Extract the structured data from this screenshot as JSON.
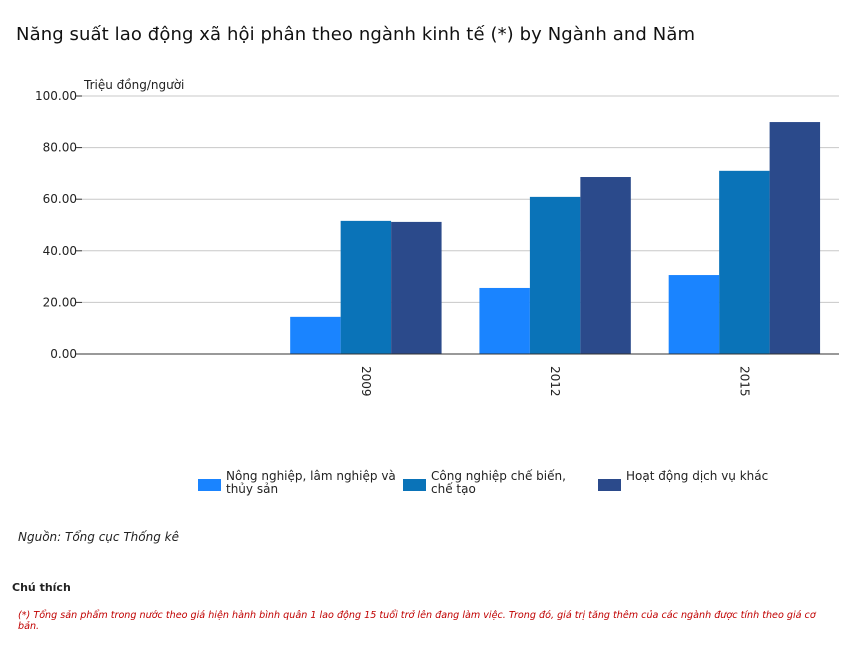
{
  "title": "Năng suất lao động xã hội phân theo ngành kinh tế (*) by Ngành and Năm",
  "chart_data": {
    "type": "bar",
    "title": "Năng suất lao động xã hội phân theo ngành kinh tế (*) by Ngành and Năm",
    "ylabel": "Triệu đồng/người",
    "xlabel": "",
    "ylim": [
      0,
      100
    ],
    "yticks": [
      "0.00",
      "20.00",
      "40.00",
      "60.00",
      "80.00",
      "100.00"
    ],
    "categories": [
      "",
      "2009",
      "2012",
      "2015"
    ],
    "series": [
      {
        "name": "Nông nghiệp, lâm nghiệp và thủy sản",
        "color": "#1a84ff",
        "values": [
          null,
          14.4,
          25.6,
          30.6
        ]
      },
      {
        "name": "Công nghiệp chế biến, chế tạo",
        "color": "#0a73b8",
        "values": [
          null,
          51.6,
          60.9,
          71.0
        ]
      },
      {
        "name": "Hoạt động dịch vụ khác",
        "color": "#2b4a8b",
        "values": [
          null,
          51.2,
          68.6,
          89.9
        ]
      }
    ],
    "legend_position": "bottom"
  },
  "legend": [
    {
      "label": "Nông nghiệp, lâm nghiệp và thủy sản",
      "color": "#1a84ff"
    },
    {
      "label": "Công nghiệp chế biến, chế tạo",
      "color": "#0a73b8"
    },
    {
      "label": "Hoạt động dịch vụ khác",
      "color": "#2b4a8b"
    }
  ],
  "source": "Nguồn: Tổng cục Thống kê",
  "notes": {
    "title": "Chú thích",
    "text": "(*) Tổng sản phẩm trong nước theo giá hiện hành bình quân 1 lao động 15 tuổi trở lên đang làm việc. Trong đó, giá trị tăng thêm của các ngành được tính theo giá cơ bản."
  }
}
